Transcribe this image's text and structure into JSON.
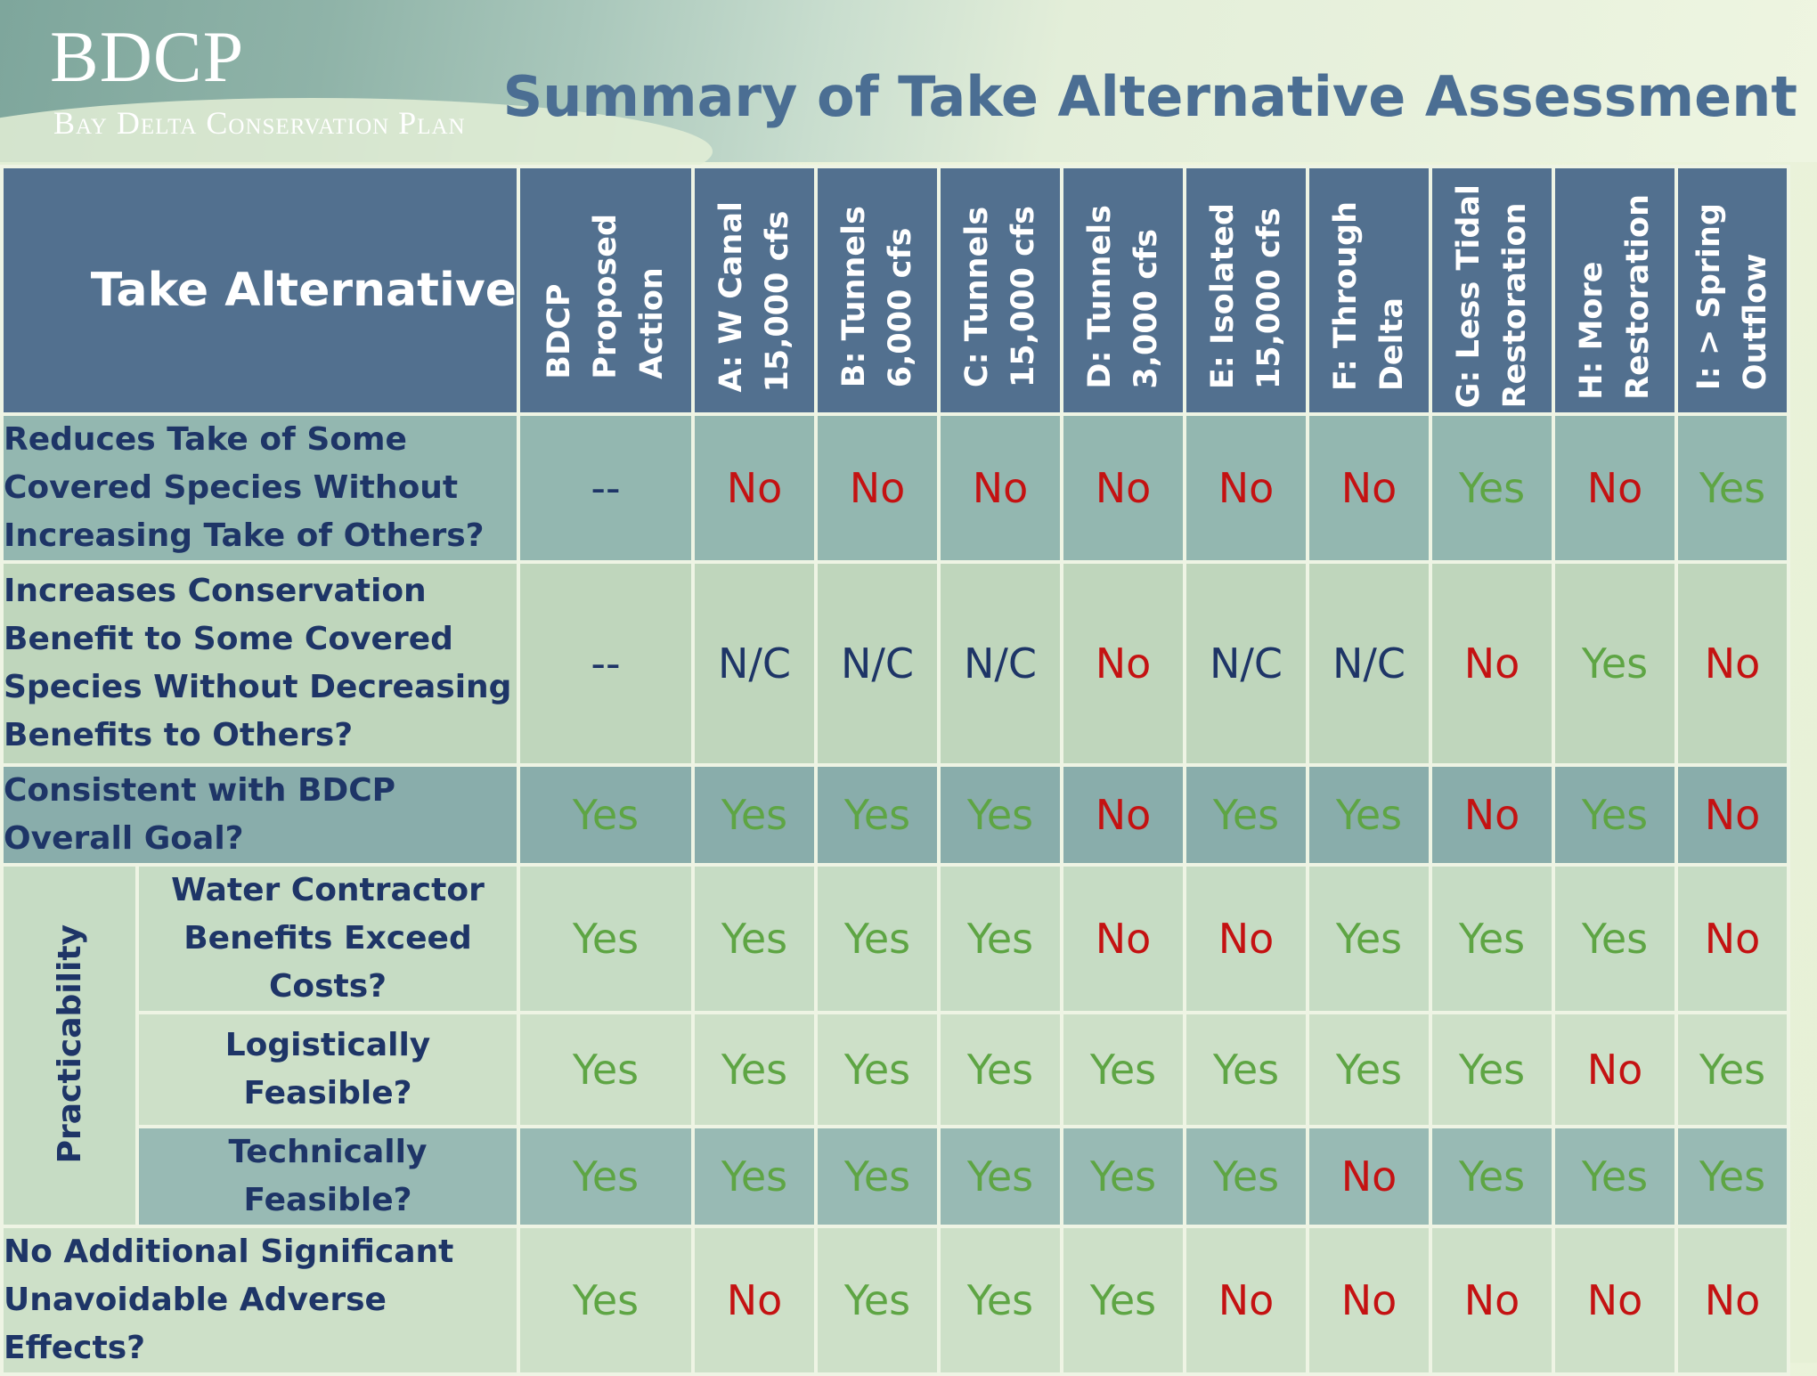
{
  "header": {
    "logo_main": "BDCP",
    "logo_sub": "Bay Delta Conservation Plan",
    "title": "Summary of Take Alternative Assessment"
  },
  "table": {
    "corner_label": "Take Alternative",
    "columns": [
      "BDCP\nProposed\nAction",
      "A: W Canal\n15,000 cfs",
      "B: Tunnels\n6,000 cfs",
      "C: Tunnels\n15,000 cfs",
      "D: Tunnels\n3,000 cfs",
      "E: Isolated\n15,000 cfs",
      "F: Through\nDelta",
      "G: Less Tidal\nRestoration",
      "H: More\nRestoration",
      "I: > Spring\nOutflow"
    ],
    "group_label": "Practicability",
    "rows": [
      {
        "label": "Reduces Take of Some Covered Species Without Increasing Take of Others?",
        "values": [
          "--",
          "No",
          "No",
          "No",
          "No",
          "No",
          "No",
          "Yes",
          "No",
          "Yes"
        ]
      },
      {
        "label": "Increases Conservation Benefit to Some Covered Species Without Decreasing Benefits to Others?",
        "values": [
          "--",
          "N/C",
          "N/C",
          "N/C",
          "No",
          "N/C",
          "N/C",
          "No",
          "Yes",
          "No"
        ]
      },
      {
        "label": "Consistent with BDCP Overall Goal?",
        "values": [
          "Yes",
          "Yes",
          "Yes",
          "Yes",
          "No",
          "Yes",
          "Yes",
          "No",
          "Yes",
          "No"
        ]
      },
      {
        "label": "Water Contractor Benefits Exceed Costs?",
        "values": [
          "Yes",
          "Yes",
          "Yes",
          "Yes",
          "No",
          "No",
          "Yes",
          "Yes",
          "Yes",
          "No"
        ]
      },
      {
        "label": "Logistically Feasible?",
        "values": [
          "Yes",
          "Yes",
          "Yes",
          "Yes",
          "Yes",
          "Yes",
          "Yes",
          "Yes",
          "No",
          "Yes"
        ]
      },
      {
        "label": "Technically Feasible?",
        "values": [
          "Yes",
          "Yes",
          "Yes",
          "Yes",
          "Yes",
          "Yes",
          "No",
          "Yes",
          "Yes",
          "Yes"
        ]
      },
      {
        "label": "No Additional Significant Unavoidable Adverse Effects?",
        "values": [
          "Yes",
          "No",
          "Yes",
          "Yes",
          "Yes",
          "No",
          "No",
          "No",
          "No",
          "No"
        ]
      }
    ]
  },
  "colors": {
    "header_bg": "#52708f",
    "yes": "#5ea544",
    "no": "#c41212",
    "neutral": "#1e3567",
    "title": "#4b6e93"
  }
}
